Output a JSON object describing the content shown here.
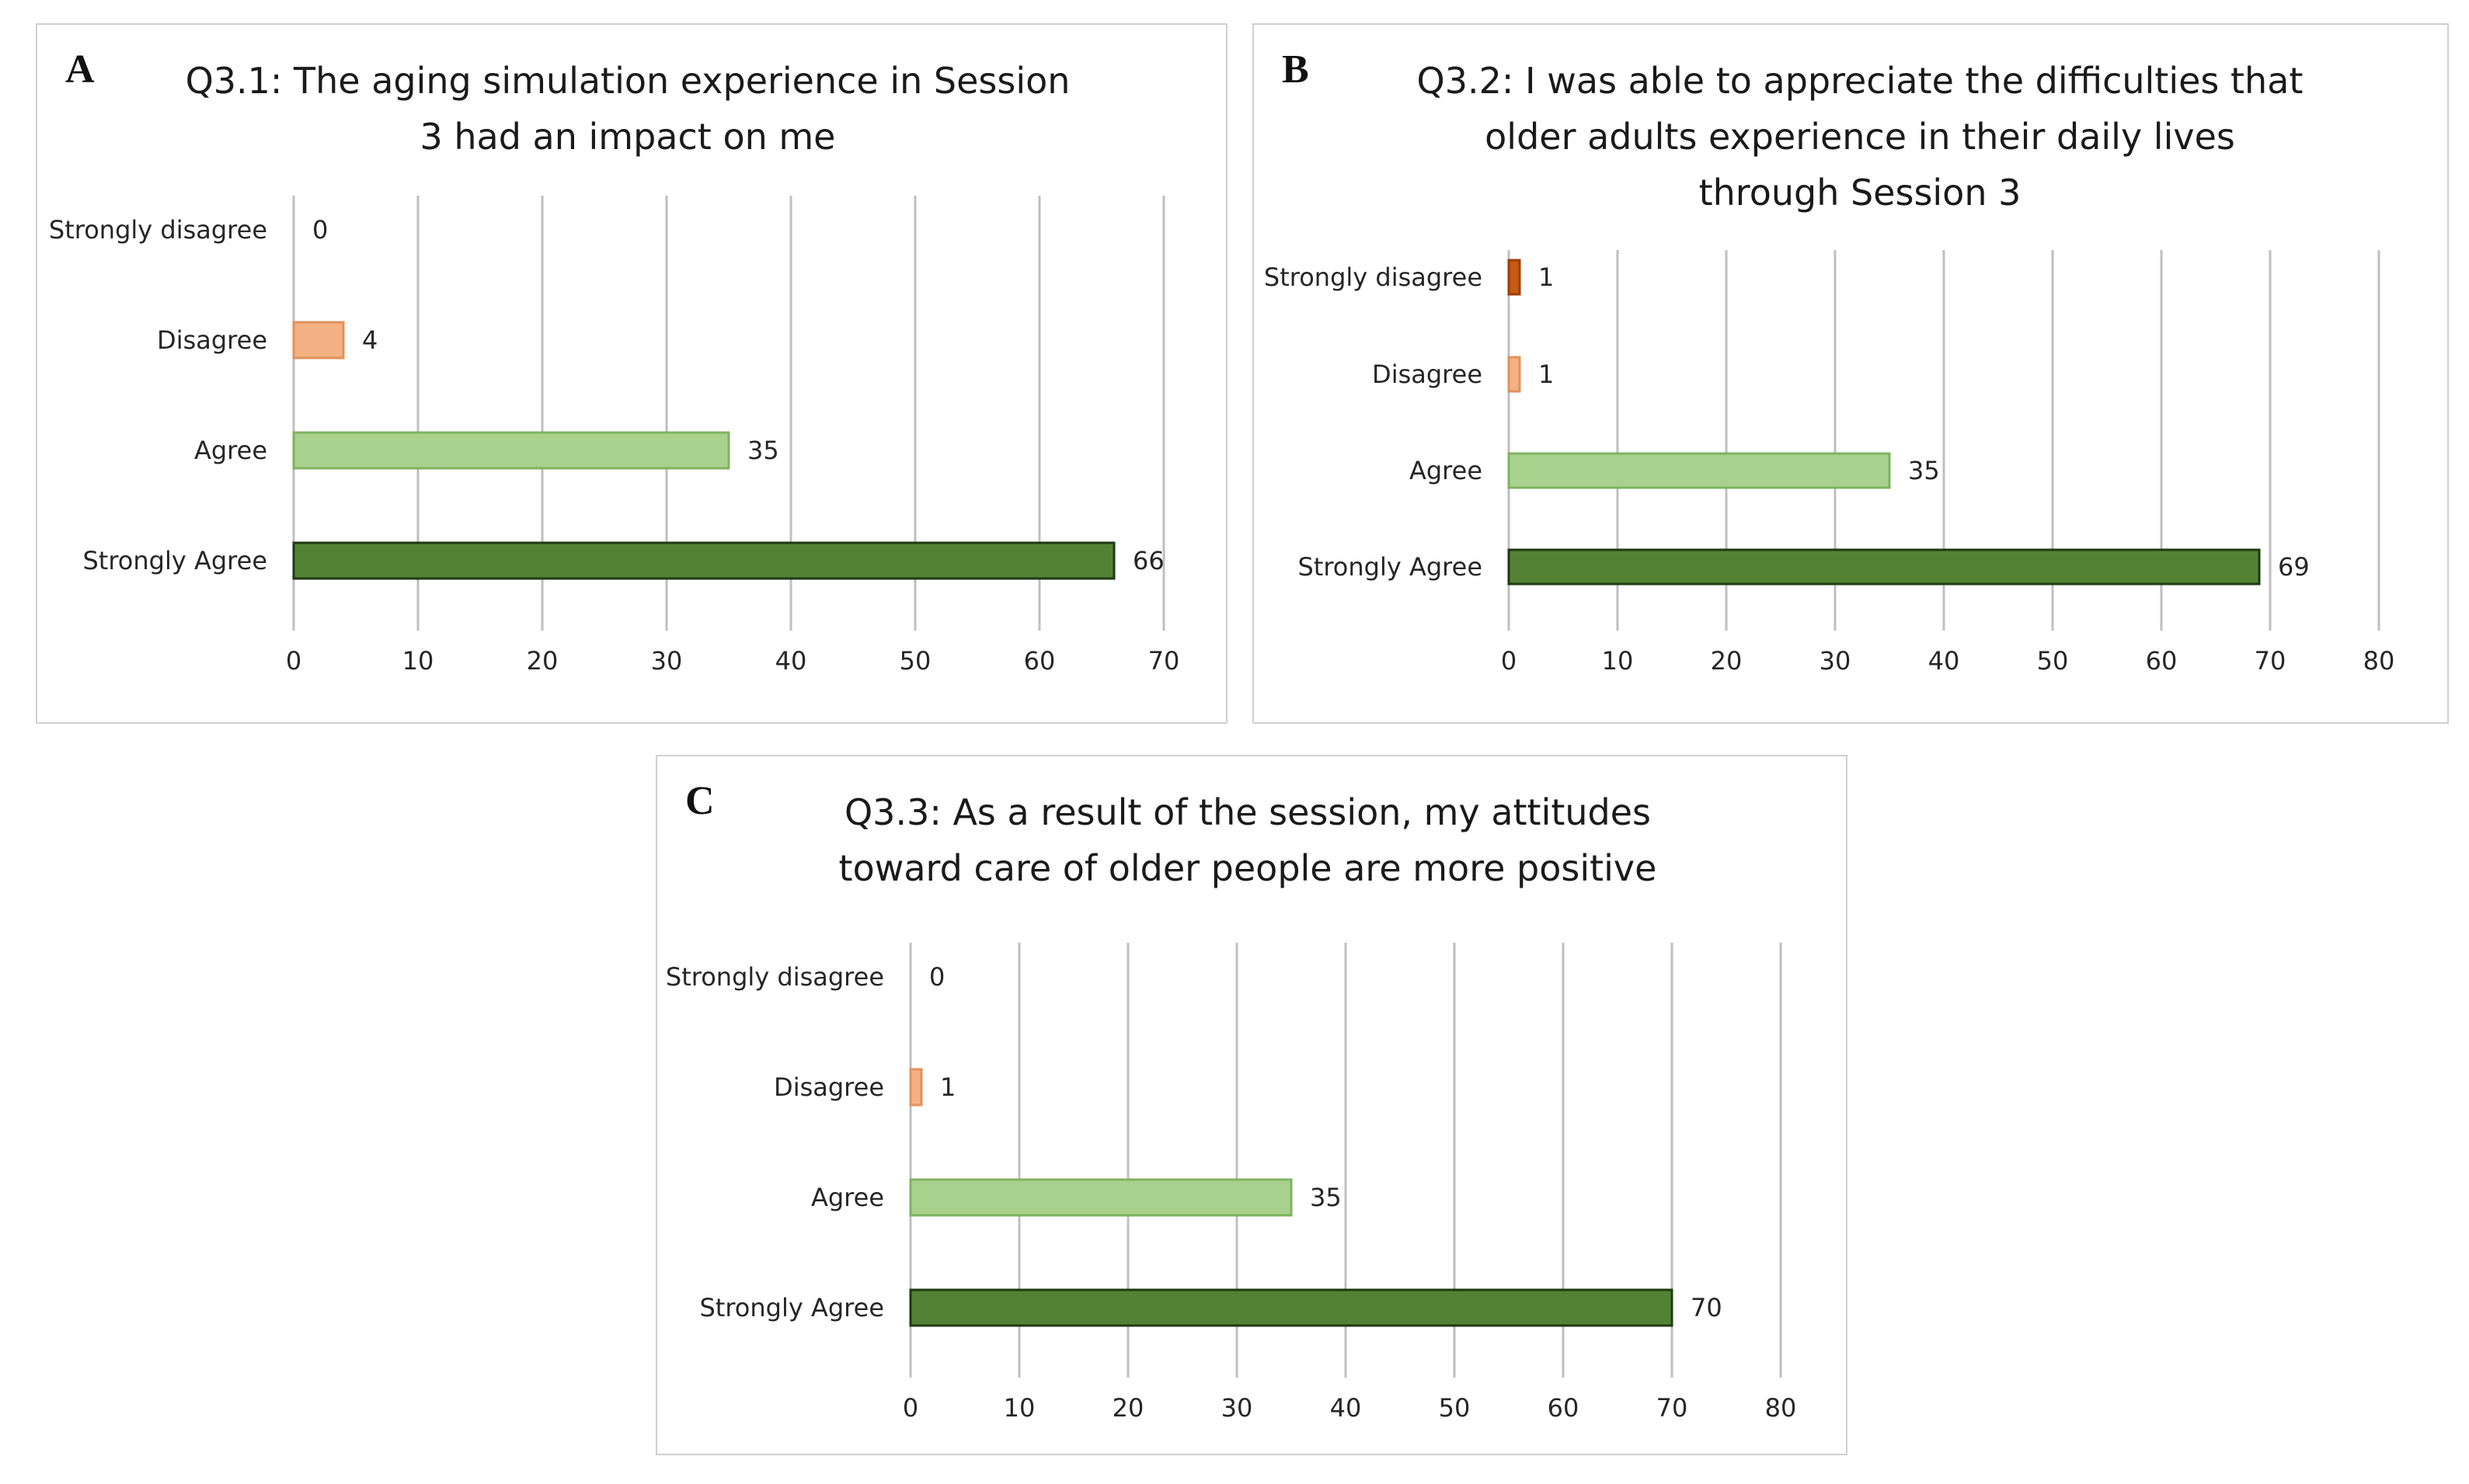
{
  "chart_data": [
    {
      "type": "bar",
      "orientation": "horizontal",
      "panel": "A",
      "title": "Q3.1: The aging simulation experience in Session 3 had an impact on me",
      "title_lines": [
        "Q3.1: The aging simulation experience in Session",
        "3 had an impact on me"
      ],
      "categories": [
        "Strongly disagree",
        "Disagree",
        "Agree",
        "Strongly Agree"
      ],
      "values": [
        0,
        4,
        35,
        66
      ],
      "xlim": [
        0,
        70
      ],
      "xticks": [
        0,
        10,
        20,
        30,
        40,
        50,
        60,
        70
      ],
      "grid": true,
      "colors": [
        "#c55a11",
        "#f4b183",
        "#a9d18e",
        "#548235"
      ]
    },
    {
      "type": "bar",
      "orientation": "horizontal",
      "panel": "B",
      "title": "Q3.2: I was able to appreciate the difficulties that older adults experience in their daily lives through Session 3",
      "title_lines": [
        "Q3.2: I was able to appreciate the difficulties that",
        "older adults experience in their daily lives",
        "through Session 3"
      ],
      "categories": [
        "Strongly disagree",
        "Disagree",
        "Agree",
        "Strongly Agree"
      ],
      "values": [
        1,
        1,
        35,
        69
      ],
      "xlim": [
        0,
        80
      ],
      "xticks": [
        0,
        10,
        20,
        30,
        40,
        50,
        60,
        70,
        80
      ],
      "grid": true,
      "colors": [
        "#c55a11",
        "#f4b183",
        "#a9d18e",
        "#548235"
      ]
    },
    {
      "type": "bar",
      "orientation": "horizontal",
      "panel": "C",
      "title": "Q3.3: As a result of the session, my attitudes toward care of older people are more positive",
      "title_lines": [
        "Q3.3: As a result of the session, my attitudes",
        "toward care of older people are more positive"
      ],
      "categories": [
        "Strongly disagree",
        "Disagree",
        "Agree",
        "Strongly Agree"
      ],
      "values": [
        0,
        1,
        35,
        70
      ],
      "xlim": [
        0,
        80
      ],
      "xticks": [
        0,
        10,
        20,
        30,
        40,
        50,
        60,
        70,
        80
      ],
      "grid": true,
      "colors": [
        "#c55a11",
        "#f4b183",
        "#a9d18e",
        "#548235"
      ]
    }
  ]
}
